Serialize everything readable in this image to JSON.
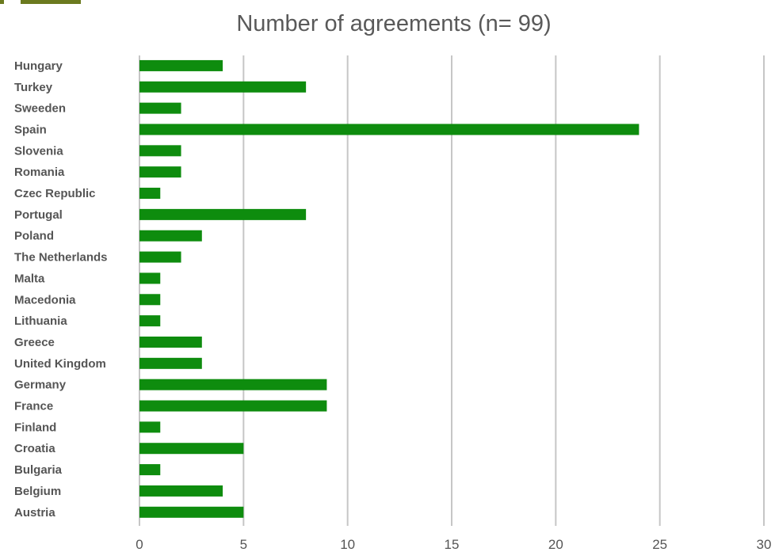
{
  "chart_data": {
    "type": "bar",
    "orientation": "horizontal",
    "title": "Number of agreements (n= 99)",
    "xlabel": "",
    "ylabel": "",
    "categories": [
      "Hungary",
      "Turkey",
      "Sweeden",
      "Spain",
      "Slovenia",
      "Romania",
      "Czec Republic",
      "Portugal",
      "Poland",
      "The Netherlands",
      "Malta",
      "Macedonia",
      "Lithuania",
      "Greece",
      "United Kingdom",
      "Germany",
      "France",
      "Finland",
      "Croatia",
      "Bulgaria",
      "Belgium",
      "Austria"
    ],
    "values": [
      4,
      8,
      2,
      24,
      2,
      2,
      1,
      8,
      3,
      2,
      1,
      1,
      1,
      3,
      3,
      9,
      9,
      1,
      5,
      1,
      4,
      5
    ],
    "xlim": [
      0,
      30
    ],
    "xticks": [
      0,
      5,
      10,
      15,
      20,
      25,
      30
    ],
    "xtick_labels": [
      "0",
      "5",
      "10",
      "15",
      "20",
      "25",
      "30"
    ],
    "grid": "vertical",
    "legend": "none",
    "bar_color": "#0e8c0e"
  }
}
